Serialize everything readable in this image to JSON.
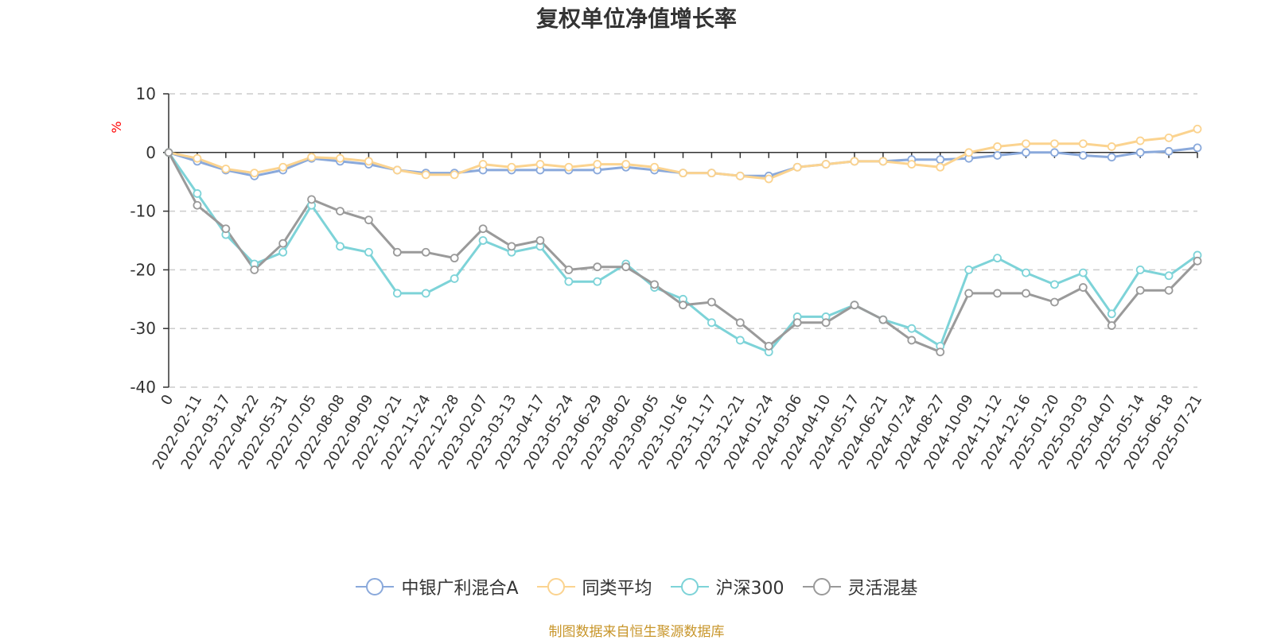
{
  "chart_data": {
    "type": "line",
    "title": "复权单位净值增长率",
    "ylabel": "%",
    "ylim": [
      -40,
      10
    ],
    "yticks": [
      10,
      0,
      -10,
      -20,
      -30,
      -40
    ],
    "grid": true,
    "legend_position": "bottom",
    "x_tick_labels": [
      "0",
      "2022-02-11",
      "2022-03-17",
      "2022-04-22",
      "2022-05-31",
      "2022-07-05",
      "2022-08-08",
      "2022-09-09",
      "2022-10-21",
      "2022-11-24",
      "2022-12-28",
      "2023-02-07",
      "2023-03-13",
      "2023-04-17",
      "2023-05-24",
      "2023-06-29",
      "2023-08-02",
      "2023-09-05",
      "2023-10-16",
      "2023-11-17",
      "2023-12-21",
      "2024-01-24",
      "2024-03-06",
      "2024-04-10",
      "2024-05-17",
      "2024-06-21",
      "2024-07-24",
      "2024-08-27",
      "2024-10-09",
      "2024-11-12",
      "2024-12-16",
      "2025-01-20",
      "2025-03-03",
      "2025-04-07",
      "2025-05-14",
      "2025-06-18",
      "2025-07-21"
    ],
    "series": [
      {
        "name": "中银广利混合A",
        "color": "#8aa9db",
        "values": [
          0,
          -1.5,
          -3,
          -4,
          -3,
          -1,
          -1.5,
          -2,
          -3,
          -3.5,
          -3.5,
          -3,
          -3,
          -3,
          -3,
          -3,
          -2.5,
          -3,
          -3.5,
          -3.5,
          -4,
          -4,
          -2.5,
          -2,
          -1.5,
          -1.5,
          -1.2,
          -1.2,
          -1,
          -0.5,
          0,
          0,
          -0.5,
          -0.8,
          0,
          0.2,
          0.8
        ]
      },
      {
        "name": "同类平均",
        "color": "#fbd38f",
        "values": [
          0,
          -1,
          -2.8,
          -3.5,
          -2.5,
          -0.8,
          -1,
          -1.5,
          -3,
          -3.8,
          -3.8,
          -2,
          -2.5,
          -2,
          -2.5,
          -2,
          -2,
          -2.5,
          -3.5,
          -3.5,
          -4,
          -4.5,
          -2.5,
          -2,
          -1.5,
          -1.5,
          -2,
          -2.5,
          0,
          1,
          1.5,
          1.5,
          1.5,
          1,
          2,
          2.5,
          4
        ]
      },
      {
        "name": "沪深300",
        "color": "#7dd3d8",
        "values": [
          0,
          -7,
          -14,
          -19,
          -17,
          -9,
          -16,
          -17,
          -24,
          -24,
          -21.5,
          -15,
          -17,
          -16,
          -22,
          -22,
          -19,
          -23,
          -25,
          -29,
          -32,
          -34,
          -28,
          -28,
          -26,
          -28.5,
          -30,
          -33,
          -20,
          -18,
          -20.5,
          -22.5,
          -20.5,
          -27.5,
          -20,
          -21,
          -17.5
        ]
      },
      {
        "name": "灵活混基",
        "color": "#9a9a9a",
        "values": [
          0,
          -9,
          -13,
          -20,
          -15.5,
          -8,
          -10,
          -11.5,
          -17,
          -17,
          -18,
          -13,
          -16,
          -15,
          -20,
          -19.5,
          -19.5,
          -22.5,
          -26,
          -25.5,
          -29,
          -33,
          -29,
          -29,
          -26,
          -28.5,
          -32,
          -34,
          -24,
          -24,
          -24,
          -25.5,
          -23,
          -29.5,
          -23.5,
          -23.5,
          -18.5
        ]
      }
    ]
  },
  "source_text": "制图数据来自恒生聚源数据库"
}
